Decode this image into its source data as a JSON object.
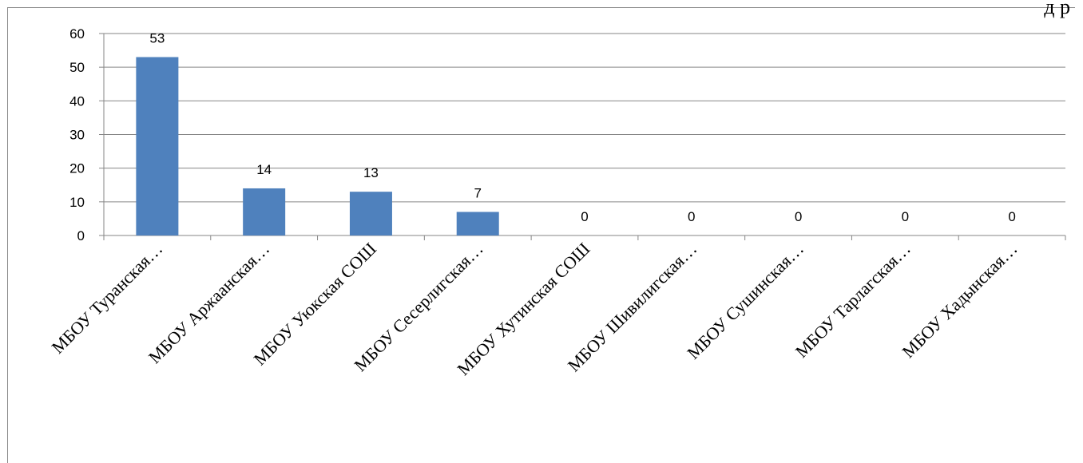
{
  "top_fragment": "д р",
  "chart_data": {
    "type": "bar",
    "categories": [
      "МБОУ Туранская…",
      "МБОУ Аржаанская…",
      "МБОУ Уюкская СОШ",
      "МБОУ Сесерлигская…",
      "МБОУ Хутинская СОШ",
      "МБОУ Шивилигская…",
      "МБОУ Сушинская…",
      "МБОУ Тарлагская…",
      "МБОУ Хадынская…"
    ],
    "values": [
      53,
      14,
      13,
      7,
      0,
      0,
      0,
      0,
      0
    ],
    "ylim": [
      0,
      60
    ],
    "yticks": [
      0,
      10,
      20,
      30,
      40,
      50,
      60
    ],
    "grid": true,
    "bar_color": "#4f81bd",
    "title": "",
    "xlabel": "",
    "ylabel": ""
  }
}
